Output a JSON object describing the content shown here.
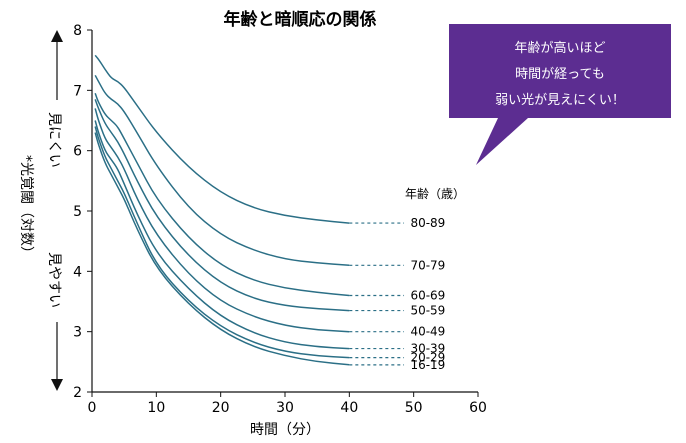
{
  "chart_data": {
    "type": "line",
    "title": "年齢と暗順応の関係",
    "xlabel": "時間（分）",
    "ylabel": "*光覚閾（対数）",
    "ylabel_upper": "見にくい",
    "ylabel_lower": "見やすい",
    "xlim": [
      0,
      60
    ],
    "ylim": [
      2,
      8
    ],
    "xticks": [
      "0",
      "10",
      "20",
      "30",
      "40",
      "50",
      "60"
    ],
    "yticks": [
      "2",
      "3",
      "4",
      "5",
      "6",
      "7",
      "8"
    ],
    "legend_title": "年齢（歳）",
    "grid": false,
    "line_color": "#2b6f86",
    "series": [
      {
        "name": "80-89",
        "x": [
          0.5,
          1,
          2,
          3,
          4,
          5,
          7,
          10,
          15,
          20,
          25,
          30,
          35,
          40
        ],
        "y": [
          7.58,
          7.52,
          7.35,
          7.2,
          7.15,
          7.05,
          6.75,
          6.3,
          5.72,
          5.3,
          5.05,
          4.92,
          4.85,
          4.8
        ],
        "end": 4.8
      },
      {
        "name": "70-79",
        "x": [
          0.5,
          1,
          2,
          3,
          4,
          5,
          7,
          10,
          15,
          20,
          25,
          30,
          35,
          40
        ],
        "y": [
          7.25,
          7.15,
          6.95,
          6.85,
          6.78,
          6.65,
          6.3,
          5.75,
          5.05,
          4.6,
          4.35,
          4.2,
          4.14,
          4.1
        ],
        "end": 4.1
      },
      {
        "name": "60-69",
        "x": [
          0.5,
          1,
          2,
          3,
          4,
          5,
          7,
          10,
          15,
          20,
          25,
          30,
          35,
          40
        ],
        "y": [
          6.95,
          6.8,
          6.6,
          6.5,
          6.4,
          6.2,
          5.8,
          5.2,
          4.55,
          4.1,
          3.85,
          3.72,
          3.65,
          3.6
        ],
        "end": 3.6
      },
      {
        "name": "50-59",
        "x": [
          0.5,
          1,
          2,
          3,
          4,
          5,
          7,
          10,
          15,
          20,
          25,
          30,
          35,
          40
        ],
        "y": [
          6.85,
          6.7,
          6.45,
          6.3,
          6.15,
          5.95,
          5.5,
          4.9,
          4.25,
          3.8,
          3.55,
          3.43,
          3.38,
          3.35
        ],
        "end": 3.35
      },
      {
        "name": "40-49",
        "x": [
          0.5,
          1,
          2,
          3,
          4,
          5,
          7,
          10,
          15,
          20,
          25,
          30,
          35,
          40
        ],
        "y": [
          6.7,
          6.5,
          6.2,
          6.05,
          5.9,
          5.7,
          5.2,
          4.6,
          3.95,
          3.5,
          3.25,
          3.1,
          3.03,
          3.0
        ],
        "end": 3.0
      },
      {
        "name": "30-39",
        "x": [
          0.5,
          1,
          2,
          3,
          4,
          5,
          7,
          10,
          15,
          20,
          25,
          30,
          35,
          40
        ],
        "y": [
          6.5,
          6.3,
          6.0,
          5.85,
          5.7,
          5.45,
          4.95,
          4.3,
          3.7,
          3.25,
          2.98,
          2.82,
          2.75,
          2.72
        ],
        "end": 2.72
      },
      {
        "name": "20-29",
        "x": [
          0.5,
          1,
          2,
          3,
          4,
          5,
          7,
          10,
          15,
          20,
          25,
          30,
          35,
          40
        ],
        "y": [
          6.4,
          6.2,
          5.9,
          5.7,
          5.5,
          5.3,
          4.8,
          4.1,
          3.5,
          3.08,
          2.82,
          2.67,
          2.6,
          2.57
        ],
        "end": 2.57
      },
      {
        "name": "16-19",
        "x": [
          0.5,
          1,
          2,
          3,
          4,
          5,
          7,
          10,
          15,
          20,
          25,
          30,
          35,
          40
        ],
        "y": [
          6.3,
          6.1,
          5.8,
          5.6,
          5.4,
          5.2,
          4.7,
          4.05,
          3.45,
          3.02,
          2.75,
          2.6,
          2.5,
          2.45
        ],
        "end": 2.45
      }
    ]
  },
  "callout": {
    "lines": [
      "年齢が高いほど",
      "時間が経っても",
      "弱い光が見えにくい！"
    ],
    "color": "#5c2d91"
  }
}
